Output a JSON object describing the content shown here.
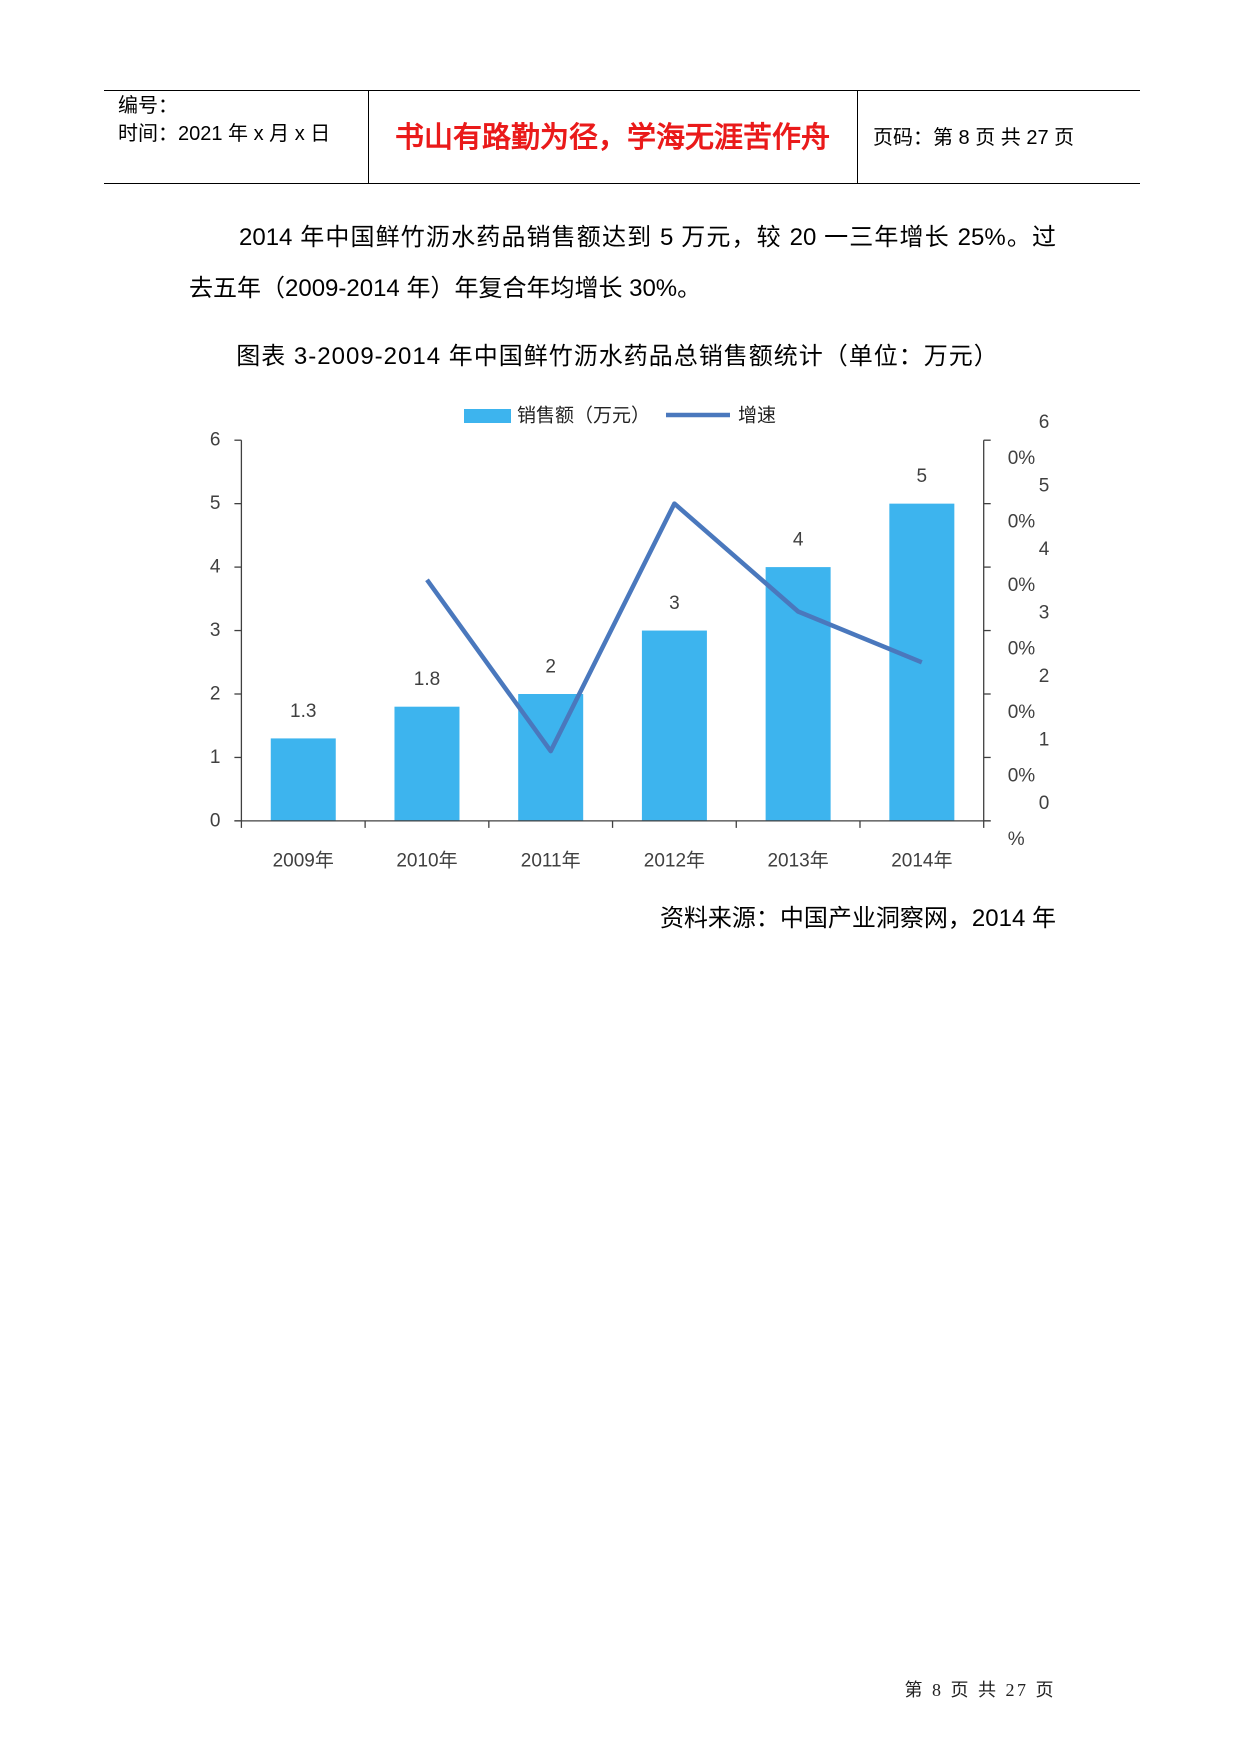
{
  "header": {
    "serial_label": "编号：",
    "time_label": "时间：2021 年 x 月 x 日",
    "motto": "书山有路勤为径，学海无涯苦作舟",
    "motto_color": "#ea1a1a",
    "page_info": "页码：第 8 页 共 27 页"
  },
  "paragraph": {
    "lines": [
      "2014 年中国鲜竹沥水药品销售额达到 5 万元，较 20 一三年增长 25%。过",
      "去五年（2009-2014 年）年复合年均增长 30%。"
    ]
  },
  "figure": {
    "caption": "图表 3-2009-2014 年中国鲜竹沥水药品总销售额统计（单位：万元）",
    "source": "资料来源：中国产业洞察网，2014 年"
  },
  "chart_data": {
    "type": "bar",
    "categories": [
      "2009年",
      "2010年",
      "2011年",
      "2012年",
      "2013年",
      "2014年"
    ],
    "series": [
      {
        "name": "销售额（万元）",
        "type": "bar",
        "axis": "left",
        "values": [
          1.3,
          1.8,
          2,
          3,
          4,
          5
        ],
        "data_labels": true,
        "color": "#3db4ee"
      },
      {
        "name": "增速",
        "type": "line",
        "axis": "right",
        "unit": "%",
        "values": [
          null,
          38,
          11,
          50,
          33,
          25
        ],
        "color": "#4a78bd"
      }
    ],
    "y_left": {
      "range": [
        0,
        6
      ],
      "ticks": [
        "0",
        "1",
        "2",
        "3",
        "4",
        "5",
        "6"
      ]
    },
    "y_right": {
      "range": [
        0,
        60
      ],
      "ticks": [
        "0%",
        "10%",
        "20%",
        "30%",
        "40%",
        "50%",
        "60%"
      ]
    },
    "axis_color": "#404040",
    "legend": "top",
    "grid": false
  },
  "footer": {
    "page_number": "第 8 页 共 27 页"
  }
}
